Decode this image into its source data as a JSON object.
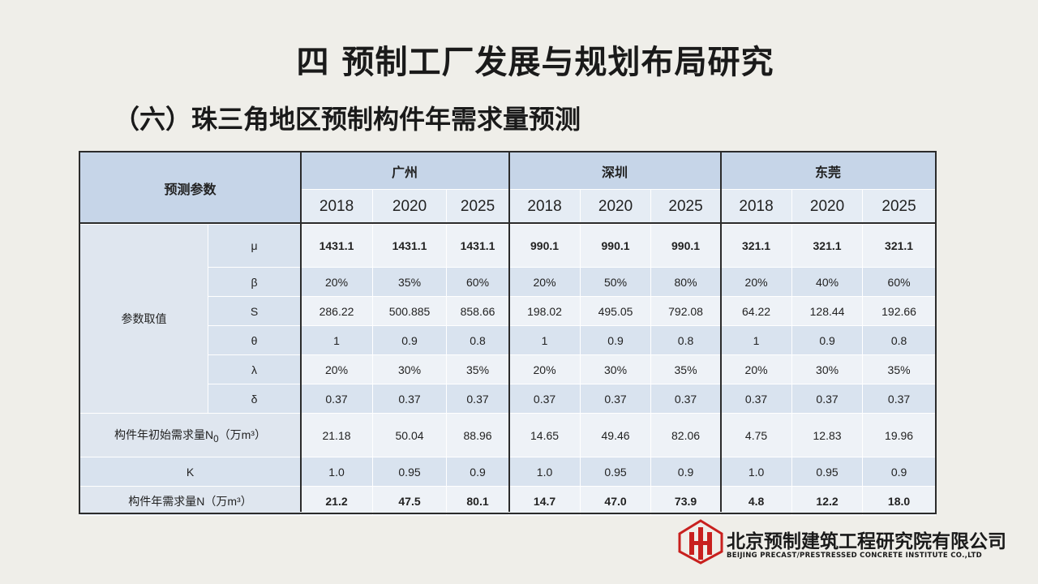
{
  "title": "四  预制工厂发展与规划布局研究",
  "subtitle": "（六）珠三角地区预制构件年需求量预测",
  "table": {
    "corner_label": "预测参数",
    "cities": [
      "广州",
      "深圳",
      "东莞"
    ],
    "years": [
      "2018",
      "2020",
      "2025",
      "2018",
      "2020",
      "2025",
      "2018",
      "2020",
      "2025"
    ],
    "param_group_label": "参数取值",
    "params": [
      {
        "symbol": "μ",
        "values": [
          "1431.1",
          "1431.1",
          "1431.1",
          "990.1",
          "990.1",
          "990.1",
          "321.1",
          "321.1",
          "321.1"
        ]
      },
      {
        "symbol": "β",
        "values": [
          "20%",
          "35%",
          "60%",
          "20%",
          "50%",
          "80%",
          "20%",
          "40%",
          "60%"
        ]
      },
      {
        "symbol": "S",
        "values": [
          "286.22",
          "500.885",
          "858.66",
          "198.02",
          "495.05",
          "792.08",
          "64.22",
          "128.44",
          "192.66"
        ]
      },
      {
        "symbol": "θ",
        "values": [
          "1",
          "0.9",
          "0.8",
          "1",
          "0.9",
          "0.8",
          "1",
          "0.9",
          "0.8"
        ]
      },
      {
        "symbol": "λ",
        "values": [
          "20%",
          "30%",
          "35%",
          "20%",
          "30%",
          "35%",
          "20%",
          "30%",
          "35%"
        ]
      },
      {
        "symbol": "δ",
        "values": [
          "0.37",
          "0.37",
          "0.37",
          "0.37",
          "0.37",
          "0.37",
          "0.37",
          "0.37",
          "0.37"
        ]
      }
    ],
    "n0": {
      "label_prefix": "构件年初始需求量N",
      "label_sub": "0",
      "label_suffix": "（万m³）",
      "values": [
        "21.18",
        "50.04",
        "88.96",
        "14.65",
        "49.46",
        "82.06",
        "4.75",
        "12.83",
        "19.96"
      ]
    },
    "k": {
      "label": "K",
      "values": [
        "1.0",
        "0.95",
        "0.9",
        "1.0",
        "0.95",
        "0.9",
        "1.0",
        "0.95",
        "0.9"
      ]
    },
    "n": {
      "label": "构件年需求量N（万m³）",
      "values": [
        "21.2",
        "47.5",
        "80.1",
        "14.7",
        "47.0",
        "73.9",
        "4.8",
        "12.2",
        "18.0"
      ]
    }
  },
  "company": {
    "name_cn": "北京预制建筑工程研究院有限公司",
    "name_en": "BEIJING PRECAST/PRESTRESSED CONCRETE INSTITUTE CO.,LTD",
    "brand_color": "#c8201e"
  }
}
